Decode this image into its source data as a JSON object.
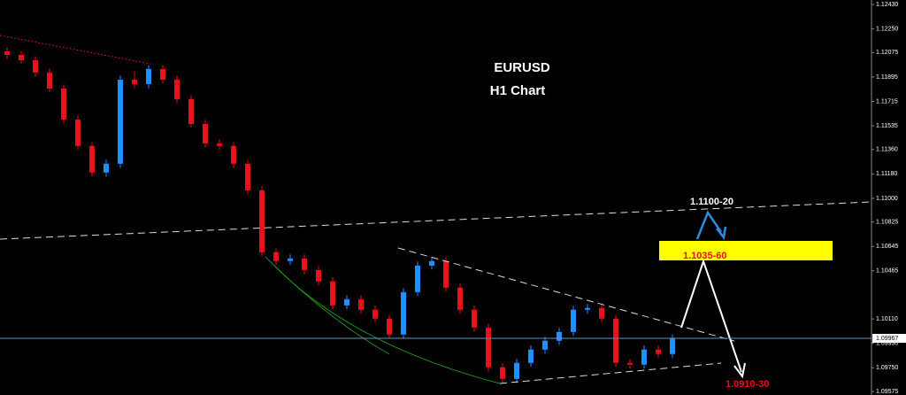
{
  "chart_data": {
    "type": "candlestick",
    "title": "EURUSD",
    "subtitle": "H1 Chart",
    "open": [
      1.12084,
      1.12058,
      1.12019,
      1.11928,
      1.1181,
      1.11581,
      1.11386,
      1.1119,
      1.11255,
      1.11875,
      1.11843,
      1.11954,
      1.11875,
      1.11732,
      1.11549,
      1.11405,
      1.11386,
      1.11255,
      1.11059,
      1.10602,
      1.10537,
      1.10556,
      1.10471,
      1.10387,
      1.1021,
      1.10256,
      1.10178,
      1.10112,
      1.09995,
      1.10308,
      1.10504,
      1.10537,
      1.10341,
      1.10178,
      1.10047,
      1.09753,
      1.09668,
      1.09786,
      1.09884,
      1.09949,
      1.10014,
      1.10178,
      1.10191,
      1.10112,
      1.09786,
      1.09773,
      1.09884,
      1.09851
    ],
    "close": [
      1.12058,
      1.12019,
      1.11928,
      1.1181,
      1.11581,
      1.11386,
      1.1119,
      1.11255,
      1.11875,
      1.11843,
      1.11954,
      1.11875,
      1.11732,
      1.11549,
      1.11405,
      1.11386,
      1.11255,
      1.11059,
      1.10602,
      1.10537,
      1.10556,
      1.10471,
      1.10387,
      1.1021,
      1.10256,
      1.10178,
      1.10112,
      1.09995,
      1.10308,
      1.10504,
      1.10537,
      1.10341,
      1.10178,
      1.10047,
      1.09753,
      1.09668,
      1.09786,
      1.09884,
      1.09949,
      1.10014,
      1.10178,
      1.10191,
      1.10112,
      1.09786,
      1.09773,
      1.09884,
      1.09851,
      1.09967
    ],
    "high": [
      1.12114,
      1.12088,
      1.12049,
      1.11958,
      1.1184,
      1.11611,
      1.11416,
      1.11285,
      1.11905,
      1.11935,
      1.11984,
      1.11984,
      1.11905,
      1.11762,
      1.11579,
      1.11435,
      1.11416,
      1.11285,
      1.11089,
      1.10632,
      1.10586,
      1.10586,
      1.10501,
      1.10417,
      1.10286,
      1.10286,
      1.10208,
      1.10142,
      1.10338,
      1.10534,
      1.10567,
      1.10567,
      1.10371,
      1.10208,
      1.10077,
      1.09783,
      1.09816,
      1.09914,
      1.09979,
      1.10044,
      1.10208,
      1.10221,
      1.10221,
      1.10142,
      1.09816,
      1.09914,
      1.09914,
      1.09997
    ],
    "low": [
      1.12028,
      1.11989,
      1.11898,
      1.1178,
      1.11551,
      1.11356,
      1.1116,
      1.1116,
      1.11225,
      1.11813,
      1.11813,
      1.11845,
      1.11702,
      1.11519,
      1.11375,
      1.11356,
      1.11225,
      1.11029,
      1.10572,
      1.10507,
      1.10507,
      1.10441,
      1.10357,
      1.1018,
      1.1018,
      1.10148,
      1.10082,
      1.09965,
      1.09965,
      1.10278,
      1.10474,
      1.10311,
      1.10148,
      1.10017,
      1.09723,
      1.09638,
      1.09638,
      1.09756,
      1.09854,
      1.09919,
      1.09984,
      1.10148,
      1.10082,
      1.09756,
      1.09743,
      1.09743,
      1.09821,
      1.09821
    ],
    "up_color": "#1e90ff",
    "down_color": "#e8111a",
    "last_price": 1.09967,
    "ylim": [
      1.09549,
      1.12463
    ],
    "yticks": [
      {
        "value": 1.1243,
        "label": "1.12430"
      },
      {
        "value": 1.1225,
        "label": "1.12250"
      },
      1.12075,
      1.11895,
      1.11715,
      1.11535,
      {
        "value": 1.1136,
        "label": "1.11360"
      },
      {
        "value": 1.1118,
        "label": "1.11180"
      },
      {
        "value": 1.11,
        "label": "1.11000"
      },
      1.10825,
      1.10645,
      1.10465,
      {
        "value": 1.1011,
        "label": "1.10110"
      },
      {
        "value": 1.0993,
        "label": "1.09930"
      },
      {
        "value": 1.0975,
        "label": "1.09750"
      },
      1.09575
    ],
    "annotations": [
      "1.1100-20",
      "1.1035-60",
      "1.0910-30"
    ]
  }
}
